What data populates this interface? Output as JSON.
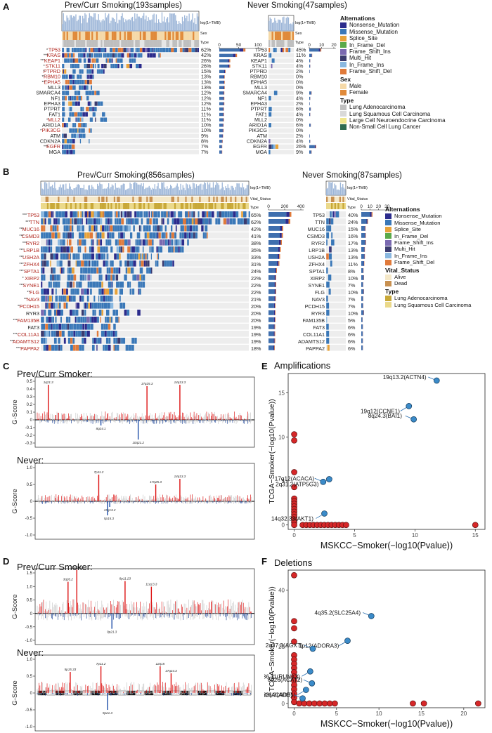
{
  "panel_a": {
    "letter": "A",
    "left_title": "Prev/Curr Smoking(193samples)",
    "right_title": "Never Smoking(47samples)",
    "tmb_label": "log(1+TMB)",
    "track_labels": [
      "Sex",
      "Type"
    ],
    "left_axis_ticks": [
      "0",
      "50",
      "100"
    ],
    "right_axis_ticks": [
      "0",
      "10",
      "20"
    ],
    "rows": [
      {
        "gene": "TP53",
        "sig": "*",
        "red": true,
        "left_pct": "62%",
        "right_gene": "TP53",
        "right_pct": "45%",
        "lbar": 0.62,
        "rbar": 0.45
      },
      {
        "gene": "KRAS",
        "sig": "***",
        "red": true,
        "left_pct": "42%",
        "right_gene": "KRAS",
        "right_pct": "11%",
        "lbar": 0.42,
        "rbar": 0.11
      },
      {
        "gene": "KEAP1",
        "sig": "***",
        "red": true,
        "left_pct": "26%",
        "right_gene": "KEAP1",
        "right_pct": "4%",
        "lbar": 0.26,
        "rbar": 0.04
      },
      {
        "gene": "STK11",
        "sig": "*",
        "red": true,
        "left_pct": "26%",
        "right_gene": "STK11",
        "right_pct": "4%",
        "lbar": 0.26,
        "rbar": 0.04
      },
      {
        "gene": "PTPRD",
        "sig": "*",
        "red": true,
        "left_pct": "15%",
        "right_gene": "PTPRD",
        "right_pct": "2%",
        "lbar": 0.15,
        "rbar": 0.02
      },
      {
        "gene": "RBM10",
        "sig": "**",
        "red": true,
        "left_pct": "13%",
        "right_gene": "RBM10",
        "right_pct": "0%",
        "lbar": 0.13,
        "rbar": 0
      },
      {
        "gene": "EPHA5",
        "sig": "**",
        "red": true,
        "left_pct": "13%",
        "right_gene": "EPHA5",
        "right_pct": "0%",
        "lbar": 0.13,
        "rbar": 0
      },
      {
        "gene": "MLL3",
        "sig": "",
        "red": false,
        "left_pct": "13%",
        "right_gene": "MLL3",
        "right_pct": "0%",
        "lbar": 0.13,
        "rbar": 0
      },
      {
        "gene": "SMARCA4",
        "sig": "",
        "red": false,
        "left_pct": "12%",
        "right_gene": "SMARCA4",
        "right_pct": "9%",
        "lbar": 0.12,
        "rbar": 0.09
      },
      {
        "gene": "NF1",
        "sig": "",
        "red": false,
        "left_pct": "12%",
        "right_gene": "NF1",
        "right_pct": "4%",
        "lbar": 0.12,
        "rbar": 0.04
      },
      {
        "gene": "EPHA3",
        "sig": "",
        "red": false,
        "left_pct": "12%",
        "right_gene": "EPHA3",
        "right_pct": "2%",
        "lbar": 0.12,
        "rbar": 0.02
      },
      {
        "gene": "PTPRT",
        "sig": "",
        "red": false,
        "left_pct": "11%",
        "right_gene": "PTPRT",
        "right_pct": "6%",
        "lbar": 0.11,
        "rbar": 0.06
      },
      {
        "gene": "FAT1",
        "sig": "",
        "red": false,
        "left_pct": "11%",
        "right_gene": "FAT1",
        "right_pct": "4%",
        "lbar": 0.11,
        "rbar": 0.04
      },
      {
        "gene": "MLL2",
        "sig": "*",
        "red": true,
        "left_pct": "11%",
        "right_gene": "MLL2",
        "right_pct": "0%",
        "lbar": 0.11,
        "rbar": 0
      },
      {
        "gene": "ARID1A",
        "sig": "",
        "red": false,
        "left_pct": "10%",
        "right_gene": "ARID1A",
        "right_pct": "6%",
        "lbar": 0.1,
        "rbar": 0.06
      },
      {
        "gene": "PIK3CG",
        "sig": "*",
        "red": true,
        "left_pct": "10%",
        "right_gene": "PIK3CG",
        "right_pct": "0%",
        "lbar": 0.1,
        "rbar": 0
      },
      {
        "gene": "ATM",
        "sig": "",
        "red": false,
        "left_pct": "9%",
        "right_gene": "ATM",
        "right_pct": "2%",
        "lbar": 0.09,
        "rbar": 0.02
      },
      {
        "gene": "CDKN2A",
        "sig": "",
        "red": false,
        "left_pct": "8%",
        "right_gene": "CDKN2A",
        "right_pct": "4%",
        "lbar": 0.08,
        "rbar": 0.04
      },
      {
        "gene": "EGFR",
        "sig": "***",
        "red": true,
        "left_pct": "7%",
        "right_gene": "EGFR",
        "right_pct": "26%",
        "lbar": 0.07,
        "rbar": 0.26
      },
      {
        "gene": "MGA",
        "sig": "",
        "red": false,
        "left_pct": "7%",
        "right_gene": "MGA",
        "right_pct": "9%",
        "lbar": 0.07,
        "rbar": 0.09
      }
    ],
    "legend": {
      "alt_title": "Alternations",
      "alterations": [
        {
          "label": "Nonsense_Mutation",
          "color": "#2b2b8c"
        },
        {
          "label": "Missense_Mutation",
          "color": "#3a78b8"
        },
        {
          "label": "Splice_Site",
          "color": "#e8a33a"
        },
        {
          "label": "In_Frame_Del",
          "color": "#5aaa4a"
        },
        {
          "label": "Frame_Shift_Ins",
          "color": "#7a69b0"
        },
        {
          "label": "Multi_Hit",
          "color": "#3b3b6e"
        },
        {
          "label": "In_Frame_Ins",
          "color": "#8ab8e0"
        },
        {
          "label": "Frame_Shift_Del",
          "color": "#e07a3a"
        }
      ],
      "sex_title": "Sex",
      "sex": [
        {
          "label": "Male",
          "color": "#f5d9a8"
        },
        {
          "label": "Female",
          "color": "#e08a3a"
        }
      ],
      "type_title": "Type",
      "types": [
        {
          "label": "Lung Adenocarcinoma",
          "color": "#bfbfbf"
        },
        {
          "label": "Lung Squamous Cell Carcinoma",
          "color": "#d9d9d9"
        },
        {
          "label": "Large Cell Neuroendocrine Carcinoma",
          "color": "#f0e68c"
        },
        {
          "label": "Non-Small Cell Lung Cancer",
          "color": "#2e6b4f"
        }
      ]
    }
  },
  "panel_b": {
    "letter": "B",
    "left_title": "Prev/Curr Smoking(856samples)",
    "right_title": "Never Smoking(87samples)",
    "tmb_label": "log(1+TMB)",
    "track_labels": [
      "Vital_Status",
      "Type"
    ],
    "left_axis_ticks": [
      "0",
      "200",
      "400"
    ],
    "right_axis_ticks": [
      "0",
      "10",
      "20",
      "30"
    ],
    "rows": [
      {
        "gene": "TP53",
        "sig": "***",
        "red": true,
        "left_pct": "65%",
        "right_gene": "TP53",
        "right_pct": "40%",
        "lbar": 0.65,
        "rbar": 0.4
      },
      {
        "gene": "TTN",
        "sig": "***",
        "red": true,
        "left_pct": "62%",
        "right_gene": "TTN",
        "right_pct": "24%",
        "lbar": 0.62,
        "rbar": 0.24
      },
      {
        "gene": "MUC16",
        "sig": "***",
        "red": true,
        "left_pct": "42%",
        "right_gene": "MUC16",
        "right_pct": "15%",
        "lbar": 0.42,
        "rbar": 0.15
      },
      {
        "gene": "CSMD3",
        "sig": "***",
        "red": true,
        "left_pct": "41%",
        "right_gene": "CSMD3",
        "right_pct": "16%",
        "lbar": 0.41,
        "rbar": 0.16
      },
      {
        "gene": "RYR2",
        "sig": "***",
        "red": true,
        "left_pct": "38%",
        "right_gene": "RYR2",
        "right_pct": "17%",
        "lbar": 0.38,
        "rbar": 0.17
      },
      {
        "gene": "LRP1B",
        "sig": "***",
        "red": true,
        "left_pct": "35%",
        "right_gene": "LRP1B",
        "right_pct": "13%",
        "lbar": 0.35,
        "rbar": 0.13
      },
      {
        "gene": "USH2A",
        "sig": "***",
        "red": true,
        "left_pct": "33%",
        "right_gene": "USH2A",
        "right_pct": "13%",
        "lbar": 0.33,
        "rbar": 0.13
      },
      {
        "gene": "ZFHX4",
        "sig": "***",
        "red": true,
        "left_pct": "31%",
        "right_gene": "ZFHX4",
        "right_pct": "11%",
        "lbar": 0.31,
        "rbar": 0.11
      },
      {
        "gene": "SPTA1",
        "sig": "***",
        "red": true,
        "left_pct": "24%",
        "right_gene": "SPTA1",
        "right_pct": "8%",
        "lbar": 0.24,
        "rbar": 0.08
      },
      {
        "gene": "XIRP2",
        "sig": "*",
        "red": true,
        "left_pct": "22%",
        "right_gene": "XIRP2",
        "right_pct": "10%",
        "lbar": 0.22,
        "rbar": 0.1
      },
      {
        "gene": "SYNE1",
        "sig": "***",
        "red": true,
        "left_pct": "22%",
        "right_gene": "SYNE1",
        "right_pct": "7%",
        "lbar": 0.22,
        "rbar": 0.07
      },
      {
        "gene": "FLG",
        "sig": "**",
        "red": true,
        "left_pct": "22%",
        "right_gene": "FLG",
        "right_pct": "10%",
        "lbar": 0.22,
        "rbar": 0.1
      },
      {
        "gene": "NAV3",
        "sig": "**",
        "red": true,
        "left_pct": "21%",
        "right_gene": "NAV3",
        "right_pct": "7%",
        "lbar": 0.21,
        "rbar": 0.07
      },
      {
        "gene": "PCDH15",
        "sig": "**",
        "red": true,
        "left_pct": "20%",
        "right_gene": "PCDH15",
        "right_pct": "7%",
        "lbar": 0.2,
        "rbar": 0.07
      },
      {
        "gene": "RYR3",
        "sig": "",
        "red": false,
        "left_pct": "20%",
        "right_gene": "RYR3",
        "right_pct": "10%",
        "lbar": 0.2,
        "rbar": 0.1
      },
      {
        "gene": "FAM135B",
        "sig": "***",
        "red": true,
        "left_pct": "20%",
        "right_gene": "FAM135B",
        "right_pct": "5%",
        "lbar": 0.2,
        "rbar": 0.05
      },
      {
        "gene": "FAT3",
        "sig": "",
        "red": false,
        "left_pct": "19%",
        "right_gene": "FAT3",
        "right_pct": "6%",
        "lbar": 0.19,
        "rbar": 0.06
      },
      {
        "gene": "COL11A1",
        "sig": "***",
        "red": true,
        "left_pct": "19%",
        "right_gene": "COL11A1",
        "right_pct": "6%",
        "lbar": 0.19,
        "rbar": 0.06
      },
      {
        "gene": "ADAMTS12",
        "sig": "***",
        "red": true,
        "left_pct": "19%",
        "right_gene": "ADAMTS12",
        "right_pct": "6%",
        "lbar": 0.19,
        "rbar": 0.06
      },
      {
        "gene": "PAPPA2",
        "sig": "***",
        "red": true,
        "left_pct": "18%",
        "right_gene": "PAPPA2",
        "right_pct": "6%",
        "lbar": 0.18,
        "rbar": 0.06
      }
    ],
    "legend": {
      "alt_title": "Alternations",
      "alterations": [
        {
          "label": "Nonsense_Mutation",
          "color": "#2b2b8c"
        },
        {
          "label": "Missense_Mutation",
          "color": "#3a78b8"
        },
        {
          "label": "Splice_Site",
          "color": "#e8a33a"
        },
        {
          "label": "In_Frame_Del",
          "color": "#5aaa4a"
        },
        {
          "label": "Frame_Shift_Ins",
          "color": "#7a69b0"
        },
        {
          "label": "Multi_Hit",
          "color": "#3b3b6e"
        },
        {
          "label": "In_Frame_Ins",
          "color": "#8ab8e0"
        },
        {
          "label": "Frame_Shift_Del",
          "color": "#e07a3a"
        }
      ],
      "vital_title": "Vital_Status",
      "vital": [
        {
          "label": "Alive",
          "color": "#f5e8c8"
        },
        {
          "label": "Dead",
          "color": "#c89050"
        }
      ],
      "type_title": "Type",
      "types": [
        {
          "label": "Lung Adenocarcinoma",
          "color": "#c8a838"
        },
        {
          "label": "Lung Squamous Cell Carcinoma",
          "color": "#ebd98a"
        }
      ]
    }
  },
  "panel_c": {
    "letter": "C",
    "top_title": "Prev/Curr Smoker:",
    "bottom_title": "Never:",
    "ylabel": "G-Score",
    "top_ticks": [
      "0.5",
      "0.4",
      "0.3",
      "0.2",
      "0.1",
      "0",
      "-0.1",
      "-0.2",
      "-0.3"
    ],
    "bottom_ticks": [
      "1.0",
      "0.5",
      "0",
      "-0.5",
      "-1.0"
    ],
    "top_peaks": [
      "1q21.3",
      "17q25.3",
      "14q13.3",
      "8q24.1",
      "10q21.2"
    ],
    "bottom_peaks": [
      "7p11.2",
      "17q25.3",
      "14q13.3",
      "19q13.2",
      "5p15.3"
    ]
  },
  "panel_d": {
    "letter": "D",
    "top_title": "Prev/Curr Smoker:",
    "bottom_title": "Never:",
    "ylabel": "G-Score",
    "top_ticks": [
      "1.5",
      "1.0",
      "0.5",
      "0",
      "-0.5",
      "-1.0"
    ],
    "bottom_ticks": [
      "1.0",
      "0.5",
      "0",
      "-0.5",
      "-1.0"
    ],
    "top_peaks": [
      "3q26.33",
      "3q26.2",
      "8p11.23",
      "11q13.3",
      "9p21.3"
    ],
    "bottom_peaks": [
      "7p11.2",
      "5p15.33",
      "12q15",
      "17q24.3",
      "9p21.3"
    ]
  },
  "panel_e": {
    "letter": "E",
    "chart_data": {
      "type": "scatter",
      "title": "Amplifications",
      "xlabel": "MSKCC−Smoker(−log10(Pvalue))",
      "ylabel": "TCGA−Smoker(−log10(Pvalue))",
      "xlim": [
        -0.5,
        15.8
      ],
      "ylim": [
        -0.5,
        17.2
      ],
      "xticks": [
        0,
        5,
        10,
        15
      ],
      "yticks": [
        0,
        5,
        10,
        15
      ],
      "labeled_points": [
        {
          "x": 11.8,
          "y": 16.4,
          "label": "19q13.2(ACTN4)"
        },
        {
          "x": 9.5,
          "y": 13.5,
          "label": "19q12(CCNE1)"
        },
        {
          "x": 9.9,
          "y": 12.0,
          "label": "8q24.3(BAI1)"
        },
        {
          "x": 2.9,
          "y": 5.2,
          "label": "2q31.2(ATP5G3)"
        },
        {
          "x": 2.4,
          "y": 4.9,
          "label": "17q12(ACACA)"
        },
        {
          "x": 2.5,
          "y": 1.3,
          "label": "14q32.33(AKT1)"
        }
      ],
      "other_points": [
        {
          "x": 0,
          "y": 10.3
        },
        {
          "x": 0,
          "y": 9.6
        },
        {
          "x": 0,
          "y": 6.0
        },
        {
          "x": 0,
          "y": 4.3
        },
        {
          "x": 0,
          "y": 3.0
        },
        {
          "x": 0,
          "y": 2.7
        },
        {
          "x": 0,
          "y": 2.4
        },
        {
          "x": 0,
          "y": 2.1
        },
        {
          "x": 0,
          "y": 1.8
        },
        {
          "x": 0,
          "y": 1.5
        },
        {
          "x": 0,
          "y": 1.2
        },
        {
          "x": 0,
          "y": 0.9
        },
        {
          "x": 0,
          "y": 0.6
        },
        {
          "x": 0,
          "y": 0.3
        },
        {
          "x": 0,
          "y": 0.0
        },
        {
          "x": 0.7,
          "y": 0
        },
        {
          "x": 1.0,
          "y": 0
        },
        {
          "x": 1.3,
          "y": 0
        },
        {
          "x": 1.6,
          "y": 0
        },
        {
          "x": 1.9,
          "y": 0
        },
        {
          "x": 2.2,
          "y": 0
        },
        {
          "x": 2.5,
          "y": 0
        },
        {
          "x": 2.8,
          "y": 0
        },
        {
          "x": 3.1,
          "y": 0
        },
        {
          "x": 3.4,
          "y": 0
        },
        {
          "x": 3.7,
          "y": 0
        },
        {
          "x": 4.0,
          "y": 0
        },
        {
          "x": 4.3,
          "y": 0
        },
        {
          "x": 15,
          "y": 0
        }
      ]
    }
  },
  "panel_f": {
    "letter": "F",
    "chart_data": {
      "type": "scatter",
      "title": "Deletions",
      "xlabel": "MSKCC−Smoker(−log10(Pvalue))",
      "ylabel": "TCGA−Smoker(−log10(Pvalue))",
      "xlim": [
        -0.7,
        22.5
      ],
      "ylim": [
        -1.5,
        47
      ],
      "xticks": [
        0,
        5,
        10,
        15,
        20
      ],
      "yticks": [
        0,
        20,
        40
      ],
      "labeled_points": [
        {
          "x": 9.1,
          "y": 30.8,
          "label": "4q35.2(SLC25A4)"
        },
        {
          "x": 6.3,
          "y": 22.1,
          "label": "1p12(ADORA3)"
        },
        {
          "x": 2.2,
          "y": 19.3,
          "label": "2q37.3(AGXT)"
        },
        {
          "x": 1.9,
          "y": 11.3,
          "label": "1q36.11(RUNX3)"
        },
        {
          "x": 2.1,
          "y": 7.1,
          "label": "6q26(ACAT2)"
        },
        {
          "x": 1.4,
          "y": 4.8,
          "label": "4p16.3(ADD1)"
        },
        {
          "x": 1.0,
          "y": 1.8,
          "label": "12q24.33(ACAD5)"
        }
      ],
      "other_points": [
        {
          "x": 0,
          "y": 45.2
        },
        {
          "x": 0,
          "y": 29.0
        },
        {
          "x": 0,
          "y": 26.5
        },
        {
          "x": 0,
          "y": 21.8
        },
        {
          "x": 0,
          "y": 17.0
        },
        {
          "x": 0,
          "y": 15.5
        },
        {
          "x": 0,
          "y": 14.0
        },
        {
          "x": 0,
          "y": 12.5
        },
        {
          "x": 0,
          "y": 11.0
        },
        {
          "x": 0,
          "y": 9.5
        },
        {
          "x": 0,
          "y": 8.0
        },
        {
          "x": 0,
          "y": 6.5
        },
        {
          "x": 0,
          "y": 5.0
        },
        {
          "x": 0,
          "y": 3.5
        },
        {
          "x": 0,
          "y": 2.0
        },
        {
          "x": 0,
          "y": 0.5
        },
        {
          "x": 0.6,
          "y": 0
        },
        {
          "x": 1.2,
          "y": 0
        },
        {
          "x": 1.8,
          "y": 0
        },
        {
          "x": 2.4,
          "y": 0
        },
        {
          "x": 3.0,
          "y": 0
        },
        {
          "x": 3.6,
          "y": 0
        },
        {
          "x": 4.2,
          "y": 0
        },
        {
          "x": 4.8,
          "y": 0
        },
        {
          "x": 14.0,
          "y": 0
        },
        {
          "x": 15.3,
          "y": 0
        },
        {
          "x": 21.7,
          "y": 0
        }
      ]
    }
  }
}
